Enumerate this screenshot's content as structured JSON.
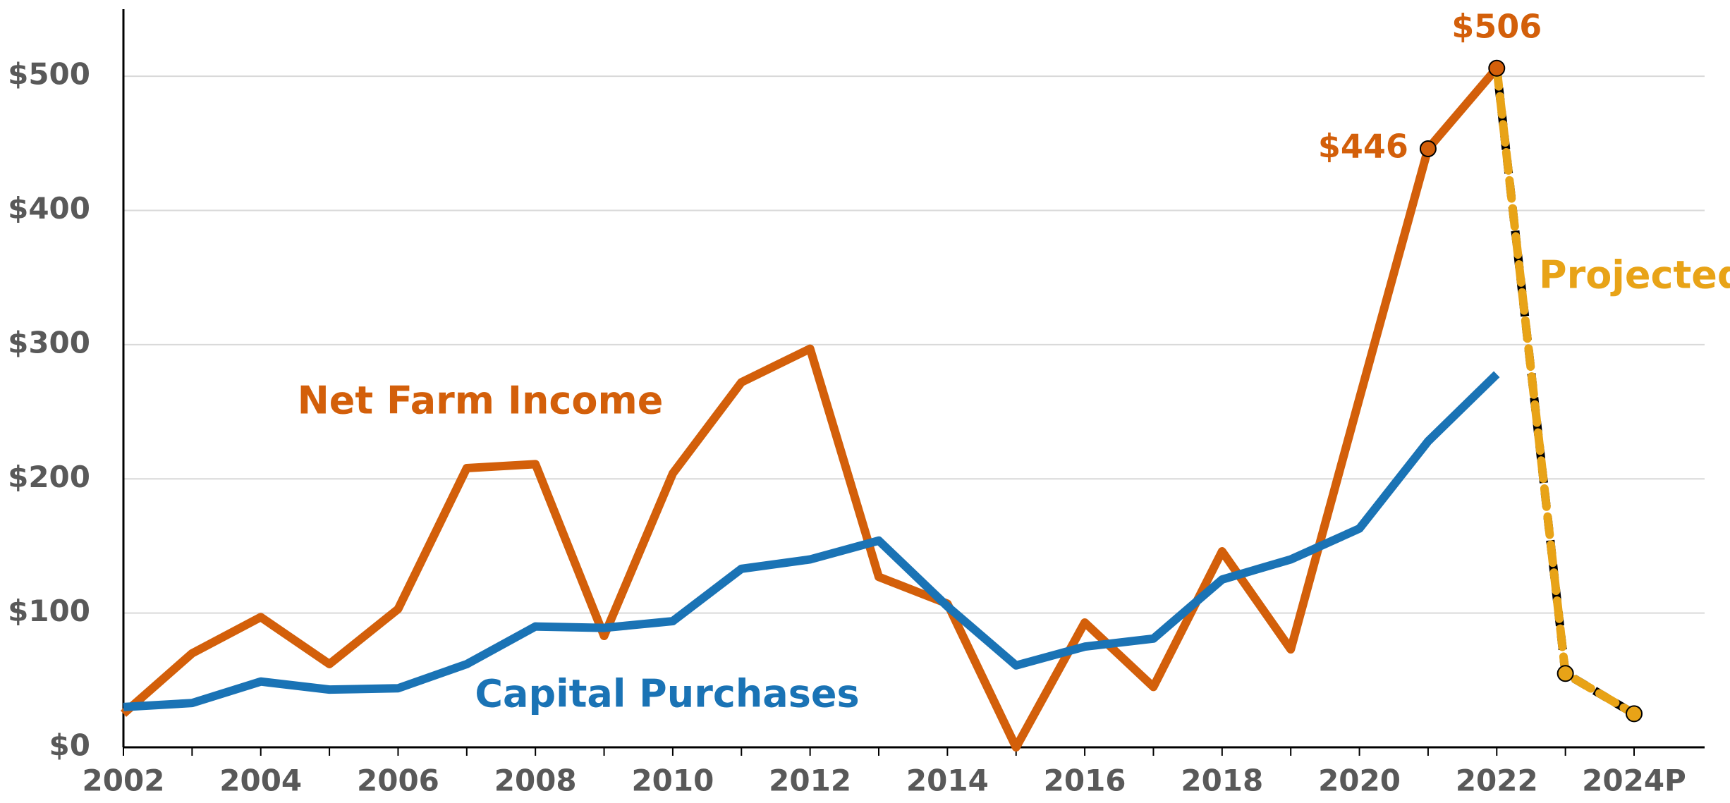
{
  "chart_data": {
    "type": "line",
    "categories": [
      "2002",
      null,
      "2004",
      null,
      "2006",
      null,
      "2008",
      null,
      "2010",
      null,
      "2012",
      null,
      "2014",
      null,
      "2016",
      null,
      "2018",
      null,
      "2020",
      null,
      "2022",
      null,
      "2024P"
    ],
    "series": [
      {
        "name": "Net Farm Income",
        "color": "#d35f0a",
        "values": [
          25,
          70,
          97,
          62,
          103,
          208,
          211,
          83,
          204,
          272,
          297,
          127,
          107,
          0,
          93,
          45,
          146,
          73,
          260,
          446,
          506,
          null,
          null
        ],
        "value_labels": [
          null,
          null,
          null,
          null,
          null,
          null,
          null,
          null,
          null,
          null,
          null,
          null,
          null,
          null,
          null,
          null,
          null,
          null,
          null,
          "$446",
          "$506",
          null,
          null
        ]
      },
      {
        "name": "Capital Purchases",
        "color": "#1a73b5",
        "values": [
          30,
          33,
          49,
          43,
          44,
          62,
          90,
          89,
          94,
          133,
          140,
          154,
          105,
          61,
          75,
          81,
          125,
          140,
          163,
          228,
          278,
          null,
          null
        ]
      },
      {
        "name": "Projected",
        "color": "#e8a317",
        "values": [
          null,
          null,
          null,
          null,
          null,
          null,
          null,
          null,
          null,
          null,
          null,
          null,
          null,
          null,
          null,
          null,
          null,
          null,
          null,
          null,
          506,
          55,
          25
        ]
      }
    ],
    "ylim": [
      0,
      550
    ],
    "yticks": [
      {
        "value": 0,
        "label": "$0"
      },
      {
        "value": 100,
        "label": "$100"
      },
      {
        "value": 200,
        "label": "$200"
      },
      {
        "value": 300,
        "label": "$300"
      },
      {
        "value": 400,
        "label": "$400"
      },
      {
        "value": 500,
        "label": "$500"
      }
    ],
    "grid": true
  }
}
